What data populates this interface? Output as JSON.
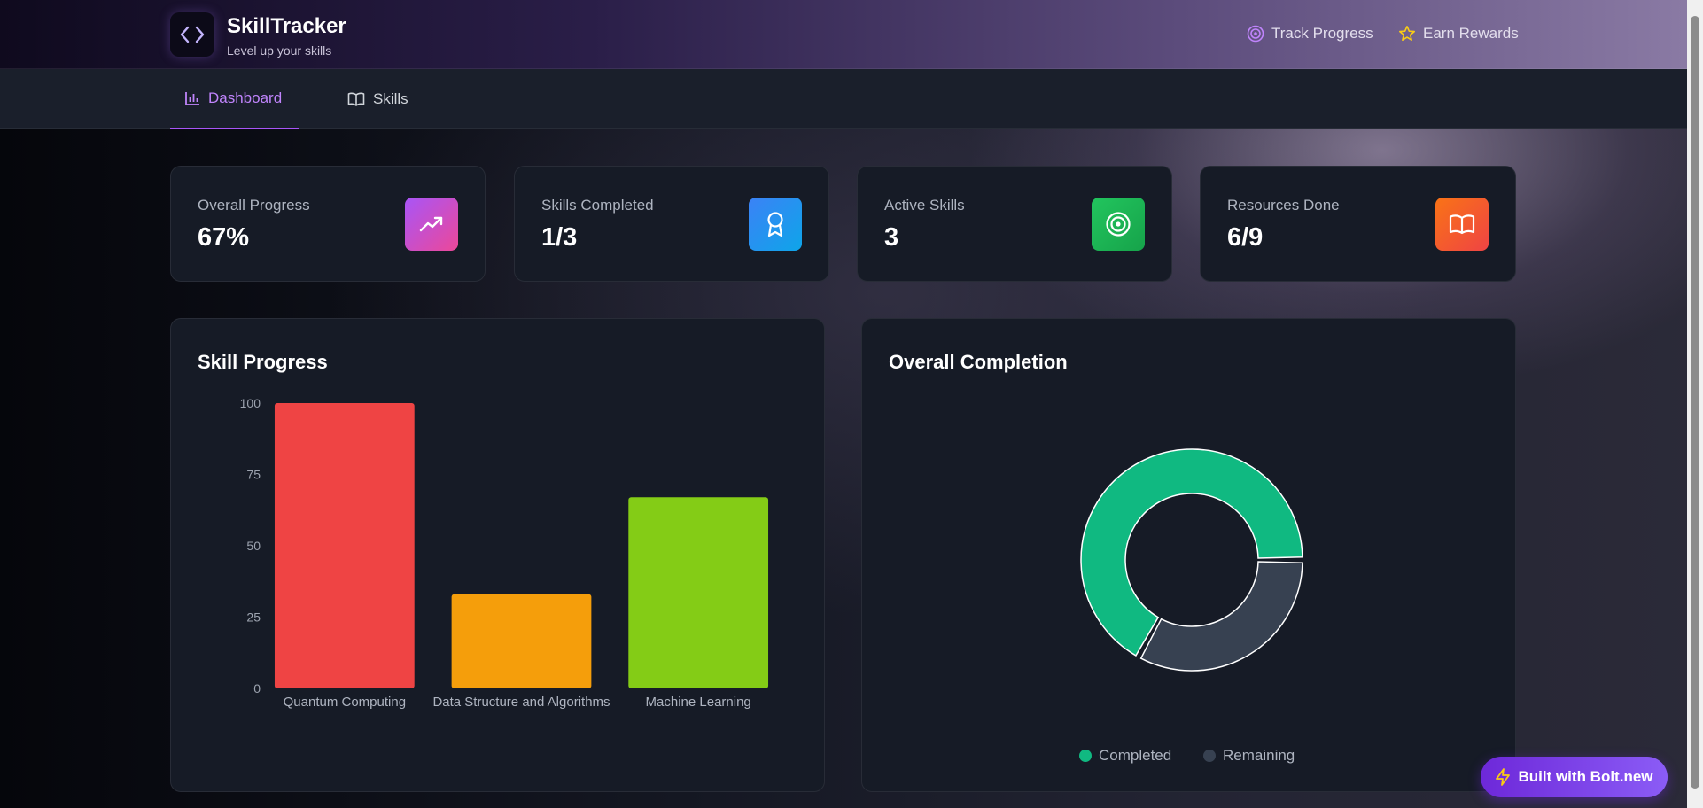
{
  "brand": {
    "title": "SkillTracker",
    "subtitle": "Level up your skills",
    "logo_icon": "code-icon"
  },
  "header_links": [
    {
      "label": "Track Progress",
      "icon": "target-icon"
    },
    {
      "label": "Earn Rewards",
      "icon": "star-icon"
    }
  ],
  "tabs": [
    {
      "label": "Dashboard",
      "icon": "bar-chart-icon",
      "active": true
    },
    {
      "label": "Skills",
      "icon": "book-icon",
      "active": false
    }
  ],
  "stats": [
    {
      "label": "Overall Progress",
      "value": "67%",
      "icon": "trending-up-icon",
      "colors": [
        "#a855f7",
        "#ec4899"
      ]
    },
    {
      "label": "Skills Completed",
      "value": "1/3",
      "icon": "award-icon",
      "colors": [
        "#3b82f6",
        "#0ea5e9"
      ]
    },
    {
      "label": "Active Skills",
      "value": "3",
      "icon": "target-icon",
      "colors": [
        "#22c55e",
        "#16a34a"
      ]
    },
    {
      "label": "Resources Done",
      "value": "6/9",
      "icon": "book-open-icon",
      "colors": [
        "#f97316",
        "#ef4444"
      ]
    }
  ],
  "panels": {
    "skill_progress_title": "Skill Progress",
    "overall_completion_title": "Overall Completion"
  },
  "chart_data": [
    {
      "type": "bar",
      "title": "Skill Progress",
      "categories": [
        "Quantum Computing",
        "Data Structure and Algorithms",
        "Machine Learning"
      ],
      "values": [
        100,
        33,
        67
      ],
      "colors": [
        "#ef4444",
        "#f59e0b",
        "#84cc16"
      ],
      "ylim": [
        0,
        100
      ],
      "yticks": [
        0,
        25,
        50,
        75,
        100
      ],
      "grid": false
    },
    {
      "type": "pie",
      "title": "Overall Completion",
      "labels": [
        "Completed",
        "Remaining"
      ],
      "values": [
        67,
        33
      ],
      "colors": [
        "#10b981",
        "#374151"
      ],
      "legend_position": "bottom"
    }
  ],
  "bolt_button": {
    "label": "Built with Bolt.new",
    "icon": "bolt-icon"
  }
}
